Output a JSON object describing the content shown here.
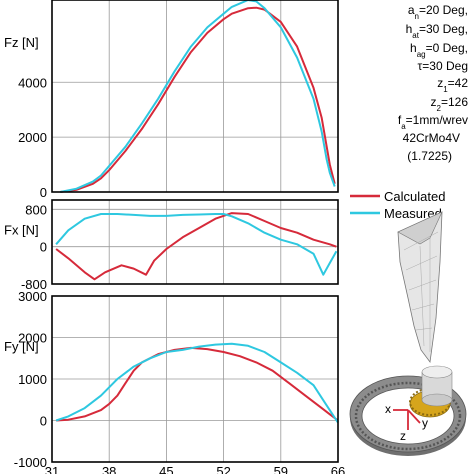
{
  "chart_data": [
    {
      "type": "line",
      "panel": "top",
      "ylabel": "Fz [N]",
      "xlim": [
        31,
        66
      ],
      "ylim": [
        0,
        7000
      ],
      "yticks": [
        0,
        2000,
        4000
      ],
      "grid": true,
      "series": [
        {
          "name": "Calculated",
          "color": "#d62a3a",
          "points": [
            [
              32,
              0
            ],
            [
              34,
              80
            ],
            [
              36,
              300
            ],
            [
              37,
              500
            ],
            [
              38,
              800
            ],
            [
              40,
              1500
            ],
            [
              42,
              2300
            ],
            [
              44,
              3200
            ],
            [
              46,
              4200
            ],
            [
              48,
              5100
            ],
            [
              50,
              5800
            ],
            [
              52,
              6300
            ],
            [
              53,
              6500
            ],
            [
              55,
              6700
            ],
            [
              56,
              6720
            ],
            [
              57,
              6650
            ],
            [
              59,
              6200
            ],
            [
              61,
              5300
            ],
            [
              63,
              3800
            ],
            [
              64,
              2700
            ],
            [
              65,
              1000
            ],
            [
              65.6,
              300
            ]
          ]
        },
        {
          "name": "Measured",
          "color": "#2ec8e0",
          "points": [
            [
              32,
              0
            ],
            [
              34,
              120
            ],
            [
              36,
              380
            ],
            [
              37,
              600
            ],
            [
              38,
              950
            ],
            [
              40,
              1650
            ],
            [
              42,
              2500
            ],
            [
              44,
              3400
            ],
            [
              46,
              4400
            ],
            [
              48,
              5300
            ],
            [
              50,
              6000
            ],
            [
              52,
              6500
            ],
            [
              53,
              6750
            ],
            [
              55,
              7000
            ],
            [
              56,
              6950
            ],
            [
              57,
              6700
            ],
            [
              59,
              6000
            ],
            [
              61,
              4900
            ],
            [
              63,
              3400
            ],
            [
              64,
              2200
            ],
            [
              64.6,
              1200
            ],
            [
              65,
              700
            ],
            [
              65.6,
              200
            ]
          ]
        }
      ]
    },
    {
      "type": "line",
      "panel": "middle",
      "ylabel": "Fx [N]",
      "xlim": [
        31,
        66
      ],
      "ylim": [
        -800,
        1000
      ],
      "yticks": [
        -800,
        0,
        800
      ],
      "grid": true,
      "legend": "right",
      "series": [
        {
          "name": "Calculated",
          "color": "#d62a3a",
          "points": [
            [
              31.5,
              -50
            ],
            [
              33,
              -250
            ],
            [
              35,
              -550
            ],
            [
              36.2,
              -700
            ],
            [
              37.5,
              -550
            ],
            [
              39.5,
              -400
            ],
            [
              41,
              -470
            ],
            [
              42.5,
              -600
            ],
            [
              43.5,
              -300
            ],
            [
              45,
              -50
            ],
            [
              47,
              200
            ],
            [
              49,
              400
            ],
            [
              51,
              600
            ],
            [
              53,
              720
            ],
            [
              55,
              700
            ],
            [
              57,
              550
            ],
            [
              59,
              400
            ],
            [
              61,
              300
            ],
            [
              63,
              150
            ],
            [
              65,
              50
            ],
            [
              65.8,
              0
            ]
          ]
        },
        {
          "name": "Measured",
          "color": "#2ec8e0",
          "points": [
            [
              31.5,
              50
            ],
            [
              33,
              350
            ],
            [
              35,
              600
            ],
            [
              37,
              700
            ],
            [
              39,
              700
            ],
            [
              41,
              680
            ],
            [
              43,
              660
            ],
            [
              45,
              660
            ],
            [
              47,
              680
            ],
            [
              49,
              690
            ],
            [
              51,
              700
            ],
            [
              52,
              700
            ],
            [
              53,
              650
            ],
            [
              55,
              500
            ],
            [
              57,
              300
            ],
            [
              59,
              150
            ],
            [
              61,
              50
            ],
            [
              63,
              -150
            ],
            [
              64.2,
              -600
            ],
            [
              65,
              -350
            ],
            [
              65.8,
              -100
            ]
          ]
        }
      ]
    },
    {
      "type": "line",
      "panel": "bottom",
      "ylabel": "Fy [N]",
      "xlabel": "",
      "xlim": [
        31,
        66
      ],
      "ylim": [
        -1000,
        3000
      ],
      "yticks": [
        -1000,
        0,
        1000,
        2000,
        3000
      ],
      "xticks": [
        31,
        38,
        45,
        52,
        59,
        66
      ],
      "grid": true,
      "series": [
        {
          "name": "Calculated",
          "color": "#d62a3a",
          "points": [
            [
              31.5,
              0
            ],
            [
              33,
              20
            ],
            [
              35,
              100
            ],
            [
              37,
              250
            ],
            [
              38,
              400
            ],
            [
              39,
              600
            ],
            [
              40,
              900
            ],
            [
              41,
              1200
            ],
            [
              42,
              1400
            ],
            [
              44,
              1600
            ],
            [
              46,
              1700
            ],
            [
              48,
              1750
            ],
            [
              50,
              1720
            ],
            [
              52,
              1650
            ],
            [
              54,
              1550
            ],
            [
              56,
              1400
            ],
            [
              58,
              1200
            ],
            [
              60,
              900
            ],
            [
              62,
              600
            ],
            [
              64,
              300
            ],
            [
              65,
              150
            ],
            [
              66,
              0
            ]
          ]
        },
        {
          "name": "Measured",
          "color": "#2ec8e0",
          "points": [
            [
              31.5,
              0
            ],
            [
              33,
              100
            ],
            [
              35,
              300
            ],
            [
              37,
              600
            ],
            [
              39,
              1000
            ],
            [
              41,
              1300
            ],
            [
              43,
              1500
            ],
            [
              45,
              1650
            ],
            [
              47,
              1700
            ],
            [
              49,
              1780
            ],
            [
              51,
              1830
            ],
            [
              53,
              1850
            ],
            [
              55,
              1800
            ],
            [
              57,
              1650
            ],
            [
              59,
              1400
            ],
            [
              61,
              1150
            ],
            [
              63,
              850
            ],
            [
              64.5,
              400
            ],
            [
              65.5,
              100
            ],
            [
              66,
              -50
            ]
          ]
        }
      ]
    }
  ],
  "params": {
    "line1": "a",
    "line1_sub": "n",
    "line1_rest": "=20 Deg,",
    "line2": "h",
    "line2_sub": "at",
    "line2_rest": "=30 Deg,",
    "line3": "h",
    "line3_sub": "ag",
    "line3_rest": "=0 Deg,",
    "line4": "τ=30 Deg",
    "line5": "z",
    "line5_sub": "1",
    "line5_rest": "=42",
    "line6": "z",
    "line6_sub": "2",
    "line6_rest": "=126",
    "line7": "f",
    "line7_sub": "a",
    "line7_rest": "=1mm/wrev",
    "line8": "42CrMo4V",
    "line9": "(1.7225)"
  },
  "axes_labels": {
    "x": "x",
    "y": "y",
    "z": "z"
  },
  "colors": {
    "calculated": "#d62a3a",
    "measured": "#2ec8e0",
    "grid": "#9a9a9a"
  },
  "icons": [
    "tool-chip-illustration",
    "ring-gear-illustration"
  ]
}
